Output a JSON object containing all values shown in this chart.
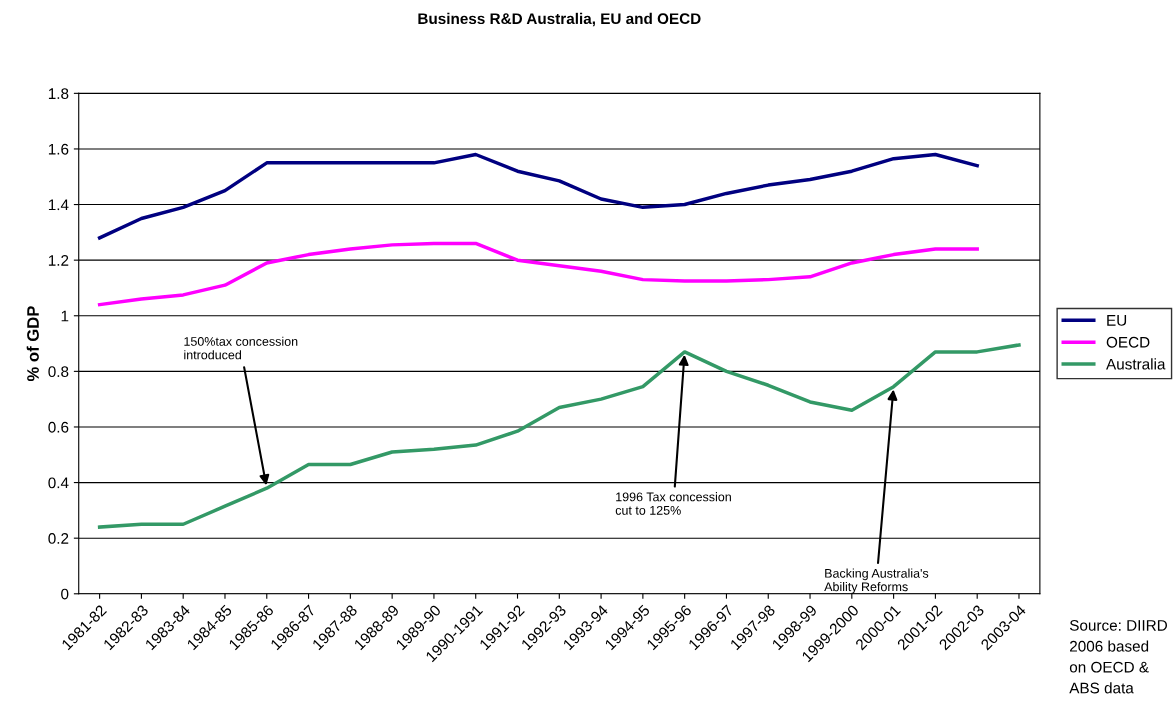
{
  "chart_data": {
    "type": "line",
    "title": "Business R&D Australia, EU and OECD",
    "ylabel": "% of GDP",
    "categories": [
      "1981-82",
      "1982-83",
      "1983-84",
      "1984-85",
      "1985-86",
      "1986-87",
      "1987-88",
      "1988-89",
      "1989-90",
      "1990-1991",
      "1991-92",
      "1992-93",
      "1993-94",
      "1994-95",
      "1995-96",
      "1996-97",
      "1997-98",
      "1998-99",
      "1999-2000",
      "2000-01",
      "2001-02",
      "2002-03",
      "2003-04"
    ],
    "series": [
      {
        "name": "EU",
        "color": "#000080",
        "values": [
          1.28,
          1.35,
          1.39,
          1.45,
          1.55,
          1.55,
          1.55,
          1.55,
          1.55,
          1.58,
          1.52,
          1.485,
          1.42,
          1.39,
          1.4,
          1.44,
          1.47,
          1.49,
          1.52,
          1.565,
          1.58,
          1.54,
          null
        ]
      },
      {
        "name": "OECD",
        "color": "#ff00ff",
        "values": [
          1.04,
          1.06,
          1.075,
          1.11,
          1.19,
          1.22,
          1.24,
          1.255,
          1.26,
          1.26,
          1.2,
          1.18,
          1.16,
          1.13,
          1.125,
          1.125,
          1.13,
          1.14,
          1.19,
          1.22,
          1.24,
          1.24,
          null
        ]
      },
      {
        "name": "Australia",
        "color": "#339966",
        "values": [
          0.24,
          0.25,
          0.25,
          0.315,
          0.38,
          0.465,
          0.465,
          0.51,
          0.52,
          0.535,
          0.585,
          0.67,
          0.7,
          0.745,
          0.87,
          0.8,
          0.75,
          0.69,
          0.66,
          0.745,
          0.87,
          0.87,
          0.895
        ]
      }
    ],
    "ylim": [
      0,
      1.8
    ],
    "yticks": [
      0,
      0.2,
      0.4,
      0.6,
      0.8,
      1,
      1.2,
      1.4,
      1.6,
      1.8
    ],
    "grid": "y",
    "legend": "right",
    "marker": "none",
    "line_style": "solid",
    "annotations": [
      {
        "text": "150%tax concession\nintroduced",
        "x": "1985-86",
        "y": 0.38
      },
      {
        "text": "1996 Tax concession\ncut to 125%",
        "x": "1995-96",
        "y": 0.87
      },
      {
        "text": "Backing Australia's\nAbility Reforms",
        "x": "2000-01",
        "y": 0.745
      },
      "Source: DIIRD\n2006 based\non OECD &\nABS data"
    ]
  }
}
